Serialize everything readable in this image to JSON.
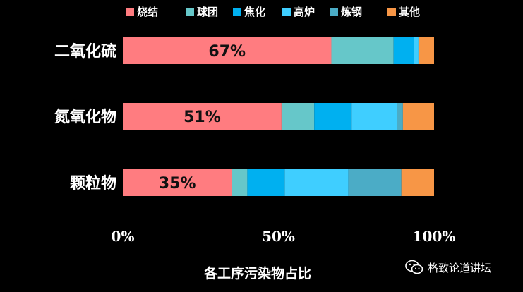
{
  "chart_data": {
    "type": "bar",
    "orientation": "horizontal",
    "stacked": "percent",
    "categories": [
      "二氧化硫",
      "氮氧化物",
      "颗粒物"
    ],
    "series": [
      {
        "name": "烧结",
        "color": "#FF7C80",
        "values": [
          67,
          51,
          35
        ]
      },
      {
        "name": "球团",
        "color": "#66C7C9",
        "values": [
          20,
          10.5,
          5
        ]
      },
      {
        "name": "焦化",
        "color": "#00B0F0",
        "values": [
          6.5,
          12,
          12
        ]
      },
      {
        "name": "高炉",
        "color": "#3FCEFF",
        "values": [
          1.5,
          14.5,
          20.5
        ]
      },
      {
        "name": "炼钢",
        "color": "#4BACC6",
        "values": [
          0,
          2,
          17
        ]
      },
      {
        "name": "其他",
        "color": "#F79646",
        "values": [
          5,
          10,
          10.5
        ]
      }
    ],
    "data_labels": [
      "67%",
      "51%",
      "35%"
    ],
    "x_ticks": [
      "0%",
      "50%",
      "100%"
    ],
    "xlabel": "各工序污染物占比",
    "xlim": [
      0,
      100
    ],
    "legend_position": "top",
    "grid": false
  },
  "watermark": {
    "text": "格致论道讲坛",
    "icon": "wechat-icon"
  }
}
